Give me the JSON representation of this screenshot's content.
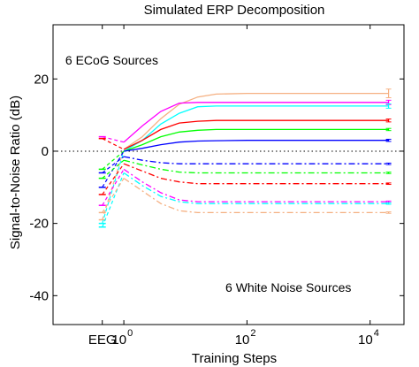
{
  "chart_data": {
    "type": "line",
    "title": "Simulated ERP Decomposition",
    "xlabel": "Training Steps",
    "ylabel": "Signal-to-Noise Ratio (dB)",
    "xscale": "log",
    "xlim": [
      -1.15,
      4.55
    ],
    "ylim": [
      -48,
      35
    ],
    "y_ticks": [
      20,
      0,
      -20,
      -40
    ],
    "x_ticks": [
      {
        "label": "EEG",
        "at": -0.35
      },
      {
        "base": "10",
        "exp": "0",
        "at": 0
      },
      {
        "base": "10",
        "exp": "2",
        "at": 2
      },
      {
        "base": "10",
        "exp": "4",
        "at": 4
      }
    ],
    "grid": false,
    "box": true,
    "zero_line": {
      "y": 0,
      "style": "dotted"
    },
    "eeg_x": -0.35,
    "x_log": [
      0,
      0.3,
      0.6,
      0.9,
      1.2,
      1.5,
      2.0,
      2.5,
      3.0,
      3.5,
      4.0,
      4.3
    ],
    "annotations": [
      {
        "name": "ecog-label",
        "text": "6 ECoG Sources",
        "x": -0.95,
        "y": 24
      },
      {
        "name": "noise-label",
        "text": "6 White Noise Sources",
        "x": 1.65,
        "y": -39
      }
    ],
    "series": [
      {
        "group": "ecog",
        "color": "#f5b082",
        "eeg": -19,
        "values": [
          0.5,
          4,
          9,
          13,
          15,
          15.8,
          16,
          16,
          16,
          16,
          16,
          16
        ],
        "errbar": 1.2
      },
      {
        "group": "ecog",
        "color": "#ff00ff",
        "eeg": 4,
        "values": [
          2.5,
          7,
          11,
          13.3,
          13.5,
          13.5,
          13.5,
          13.5,
          13.5,
          13.5,
          13.5,
          13.5
        ],
        "errbar": 0.6
      },
      {
        "group": "ecog",
        "color": "#00ffff",
        "eeg": -20,
        "values": [
          0,
          3,
          7.5,
          10.5,
          12.3,
          12.5,
          12.5,
          12.5,
          12.5,
          12.5,
          12.5,
          12.5
        ],
        "errbar": 0.6
      },
      {
        "group": "ecog",
        "color": "#ff0000",
        "eeg": 3.5,
        "values": [
          0.5,
          3,
          6,
          7.8,
          8.3,
          8.5,
          8.5,
          8.5,
          8.5,
          8.5,
          8.5,
          8.5
        ],
        "errbar": 0.4
      },
      {
        "group": "ecog",
        "color": "#00ff00",
        "eeg": -5,
        "values": [
          0,
          1.8,
          4,
          5.3,
          5.8,
          6,
          6,
          6,
          6,
          6,
          6,
          6
        ],
        "errbar": 0.3
      },
      {
        "group": "ecog",
        "color": "#0000ff",
        "eeg": -10,
        "values": [
          0,
          0.8,
          1.8,
          2.5,
          2.8,
          2.9,
          3,
          3,
          3,
          3,
          3,
          3
        ],
        "errbar": 0.3
      },
      {
        "group": "noise",
        "color": "#0000ff",
        "eeg": -6,
        "values": [
          -1.5,
          -2.5,
          -3.2,
          -3.5,
          -3.5,
          -3.5,
          -3.5,
          -3.5,
          -3.5,
          -3.5,
          -3.5,
          -3.5
        ]
      },
      {
        "group": "noise",
        "color": "#00ff00",
        "eeg": -7.5,
        "values": [
          -2.5,
          -3.8,
          -5,
          -5.8,
          -6,
          -6,
          -6,
          -6,
          -6,
          -6,
          -6,
          -6
        ]
      },
      {
        "group": "noise",
        "color": "#ff0000",
        "eeg": -12,
        "values": [
          -3.5,
          -5.5,
          -7.5,
          -8.5,
          -9,
          -9,
          -9,
          -9,
          -9,
          -9,
          -9,
          -9
        ]
      },
      {
        "group": "noise",
        "color": "#ff00ff",
        "eeg": -15,
        "values": [
          -5,
          -8.5,
          -11.5,
          -13.5,
          -14,
          -14,
          -14,
          -14,
          -14,
          -14,
          -14,
          -14
        ]
      },
      {
        "group": "noise",
        "color": "#00ffff",
        "eeg": -21,
        "values": [
          -6,
          -9.5,
          -12.5,
          -14,
          -14.5,
          -14.5,
          -14.5,
          -14.5,
          -14.5,
          -14.5,
          -14.5,
          -14.5
        ]
      },
      {
        "group": "noise",
        "color": "#f5b082",
        "eeg": -17,
        "values": [
          -7.5,
          -11,
          -14.5,
          -16.5,
          -17,
          -17,
          -17,
          -17,
          -17,
          -17,
          -17,
          -17
        ]
      }
    ]
  }
}
